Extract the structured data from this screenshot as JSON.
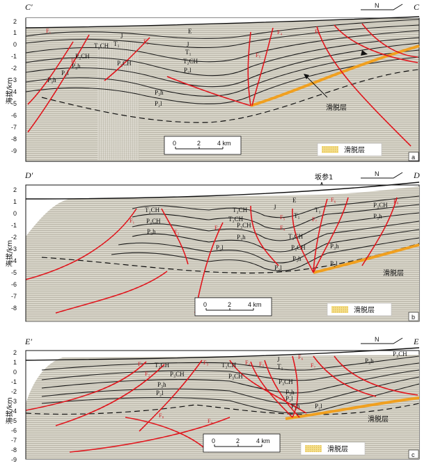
{
  "panels": [
    {
      "id": "a",
      "left_label": "C′",
      "right_label": "C",
      "north": "N",
      "axis_label": "海拔/km",
      "ticks": [
        "2",
        "1",
        "0",
        "-1",
        "-2",
        "-3",
        "-4",
        "-5",
        "-6",
        "-7",
        "-8",
        "-9"
      ],
      "faults": [
        "F₁",
        "F₂",
        "F₃",
        "F₄",
        "F₅",
        "F₆"
      ],
      "strata": [
        "E",
        "J",
        "T₁",
        "T₂CH",
        "P₃CH",
        "P₃h",
        "P₂l",
        "J",
        "T₁",
        "T₂CH",
        "P₃CH",
        "P₃h",
        "P₂l",
        "P₃h",
        "P₂l"
      ],
      "detachment": "滑脱层",
      "scale": [
        "0",
        "2",
        "4 km"
      ],
      "legend": "滑脱层",
      "panel_label": "a"
    },
    {
      "id": "b",
      "left_label": "D′",
      "right_label": "D",
      "north": "N",
      "well": "坂参1",
      "axis_label": "海拔/km",
      "ticks": [
        "2",
        "1",
        "0",
        "-1",
        "-2",
        "-3",
        "-4",
        "-5",
        "-6",
        "-7",
        "-8"
      ],
      "faults": [
        "F₁",
        "F₂",
        "F₃",
        "F₄",
        "F₅",
        "F₆",
        "F₇",
        "F₈"
      ],
      "strata": [
        "T₂CH",
        "P₃CH",
        "P₃h",
        "T₂CH",
        "T₂CH",
        "P₃CH",
        "P₃h",
        "P₂l",
        "J",
        "E",
        "T₁",
        "T₁",
        "T₂CH",
        "P₃CH",
        "P₃h",
        "P₂l",
        "P₃h",
        "P₂l",
        "P₃CH",
        "P₃h"
      ],
      "detachment": "滑脱层",
      "scale": [
        "0",
        "2",
        "4 km"
      ],
      "legend": "滑脱层",
      "panel_label": "b"
    },
    {
      "id": "c",
      "left_label": "E′",
      "right_label": "E",
      "north": "N",
      "axis_label": "海拔/km",
      "ticks": [
        "2",
        "1",
        "0",
        "-1",
        "-2",
        "-3",
        "-4",
        "-5",
        "-6",
        "-7",
        "-8",
        "-9"
      ],
      "faults": [
        "F₁",
        "F₂",
        "F₃",
        "F₄",
        "F₅",
        "F₆",
        "F₇",
        "F₈",
        "F₉"
      ],
      "strata": [
        "T₂CH",
        "P₃CH",
        "T₂CH",
        "P₃CH",
        "J",
        "T₁",
        "P₃h",
        "P₂l",
        "P₃CH",
        "P₃h",
        "P₂l",
        "P₃h",
        "P₂l",
        "P₃h",
        "P₃CH"
      ],
      "detachment": "滑脱层",
      "scale": [
        "0",
        "2",
        "4 km"
      ],
      "legend": "滑脱层",
      "panel_label": "c"
    }
  ],
  "colors": {
    "fault": "#e0161d",
    "horizon": "#1a1a1a",
    "detachment": "#f0a020",
    "seismic": "#d8d4c8",
    "legend_fill": "#f2dc86"
  }
}
